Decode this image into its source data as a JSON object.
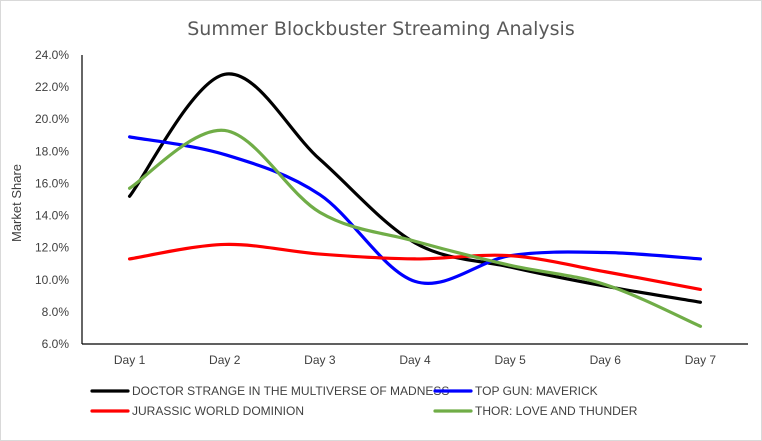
{
  "chart_data": {
    "type": "line",
    "title": "Summer Blockbuster Streaming Analysis",
    "xlabel": "",
    "ylabel": "Market Share",
    "categories": [
      "Day 1",
      "Day 2",
      "Day 3",
      "Day 4",
      "Day 5",
      "Day 6",
      "Day 7"
    ],
    "ylim": [
      0.06,
      0.24
    ],
    "yticks": [
      "6.0%",
      "8.0%",
      "10.0%",
      "12.0%",
      "14.0%",
      "16.0%",
      "18.0%",
      "20.0%",
      "22.0%",
      "24.0%"
    ],
    "grid": false,
    "legend_position": "bottom",
    "smooth": true,
    "series": [
      {
        "name": "DOCTOR STRANGE IN THE MULTIVERSE OF MADNESS",
        "color": "#000000",
        "values": [
          0.152,
          0.228,
          0.175,
          0.123,
          0.108,
          0.096,
          0.086
        ]
      },
      {
        "name": "TOP GUN: MAVERICK",
        "color": "#0000ff",
        "values": [
          0.189,
          0.178,
          0.153,
          0.099,
          0.115,
          0.117,
          0.113
        ]
      },
      {
        "name": "JURASSIC WORLD DOMINION",
        "color": "#ff0000",
        "values": [
          0.113,
          0.122,
          0.116,
          0.113,
          0.115,
          0.105,
          0.094
        ]
      },
      {
        "name": "THOR: LOVE AND THUNDER",
        "color": "#70ad47",
        "values": [
          0.157,
          0.193,
          0.142,
          0.124,
          0.109,
          0.097,
          0.071
        ]
      }
    ]
  }
}
